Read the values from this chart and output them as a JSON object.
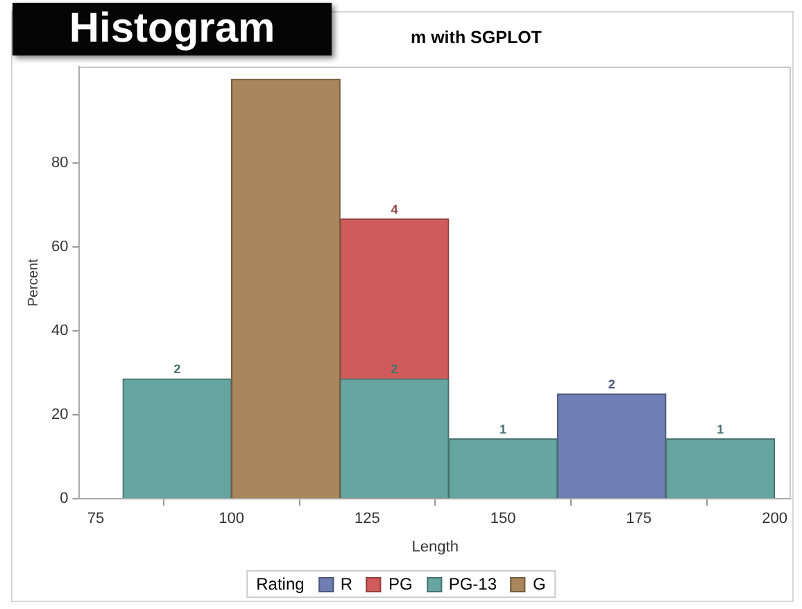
{
  "chart_data": {
    "type": "histogram",
    "title": "Histogram",
    "subtitle": "m with SGPLOT",
    "xlabel": "Length",
    "ylabel": "Percent",
    "legend_title": "Rating",
    "bins": [
      80,
      100,
      120,
      140,
      160,
      180,
      200
    ],
    "series": [
      {
        "name": "R",
        "color": "#6f7eb3",
        "values": [
          null,
          null,
          null,
          null,
          25,
          null
        ]
      },
      {
        "name": "PG",
        "color": "#d05b5b",
        "values": [
          null,
          null,
          66.7,
          null,
          null,
          null
        ]
      },
      {
        "name": "PG-13",
        "color": "#66a5a0",
        "values": [
          28.6,
          null,
          28.6,
          14.3,
          null,
          14.3
        ]
      },
      {
        "name": "G",
        "color": "#a9865b",
        "values": [
          null,
          100,
          null,
          null,
          null,
          null
        ]
      }
    ],
    "annotations": [
      {
        "text": "2",
        "x": 170,
        "y": 25
      },
      {
        "text": "4",
        "x": 130,
        "y": 66.7
      },
      {
        "text": "2",
        "x": 90,
        "y": 28.6
      },
      {
        "text": "2",
        "x": 130,
        "y": 28.6
      },
      {
        "text": "1",
        "x": 150,
        "y": 14.3
      },
      {
        "text": "1",
        "x": 190,
        "y": 14.3
      }
    ],
    "xlim": [
      72,
      203
    ],
    "xticks": [
      75,
      100,
      125,
      150,
      175,
      200
    ],
    "ylim": [
      0,
      103
    ],
    "yticks": [
      0,
      20,
      40,
      60,
      80
    ],
    "grid": false,
    "legend": "bottom"
  }
}
